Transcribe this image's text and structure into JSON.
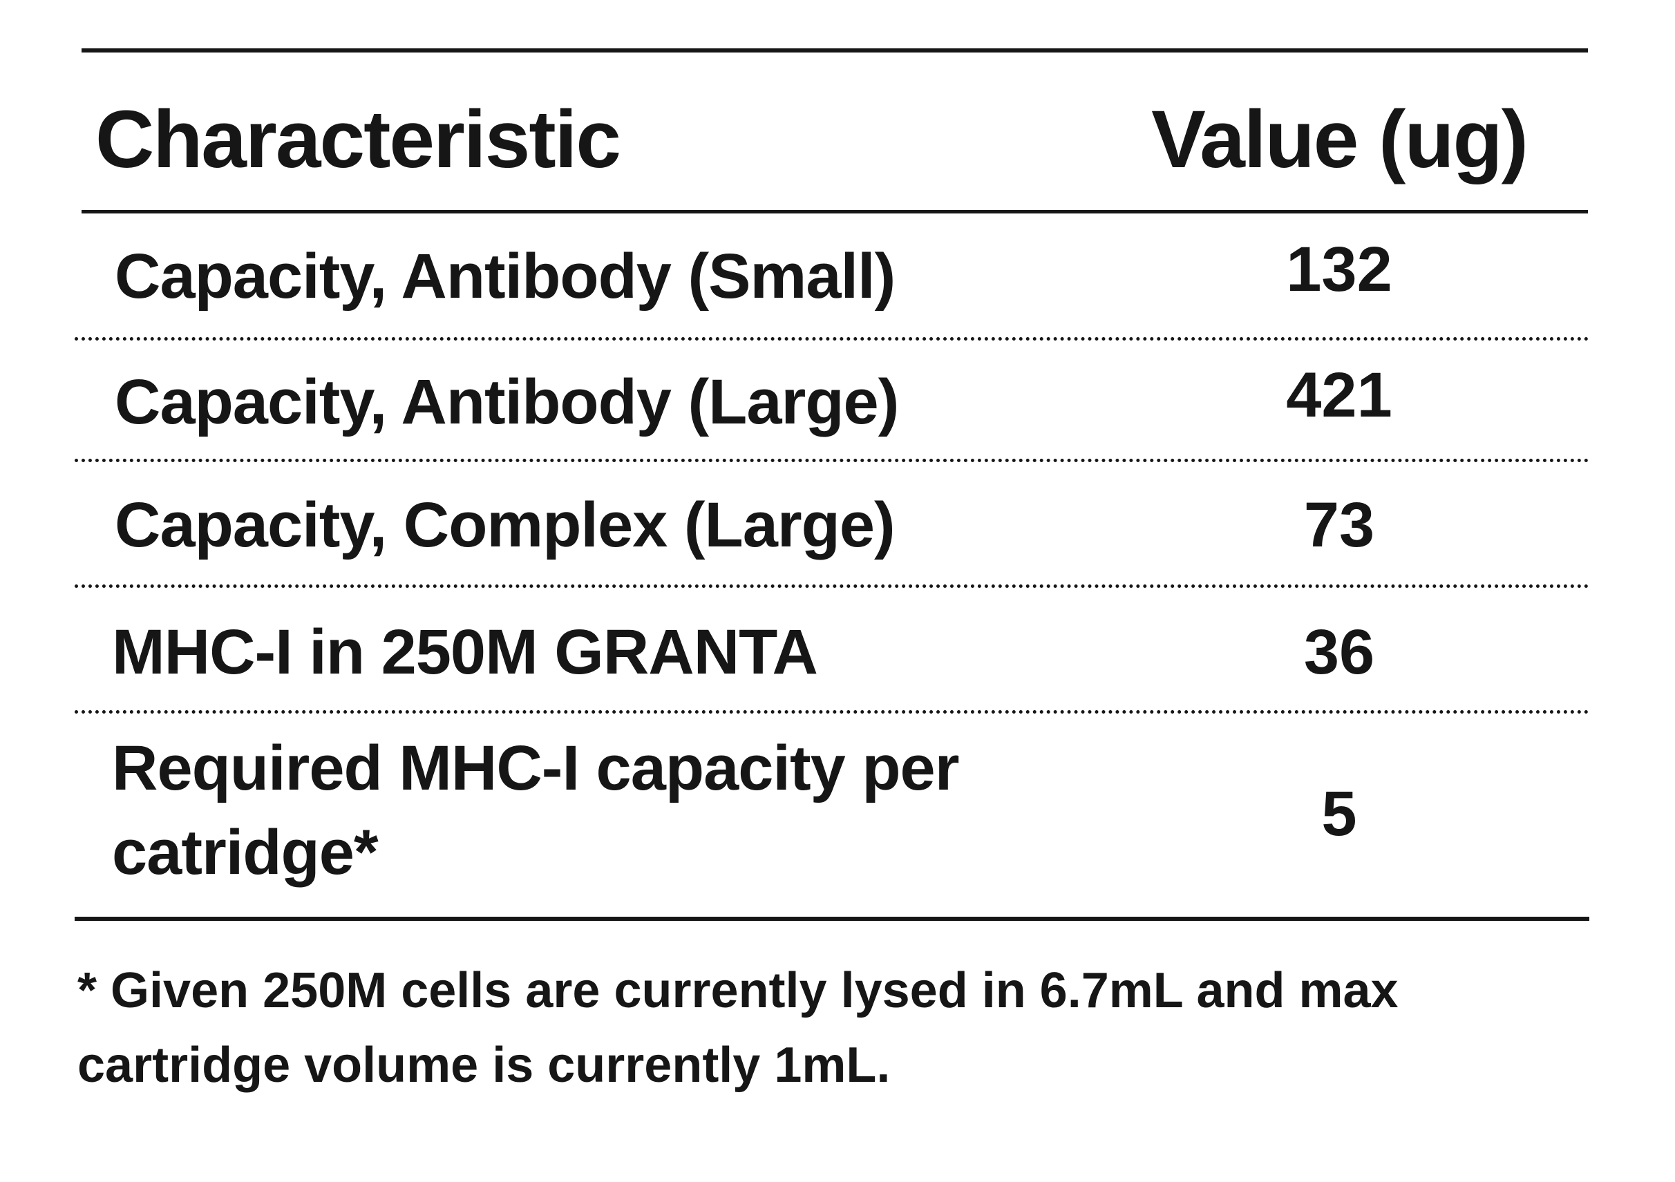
{
  "table": {
    "header": {
      "characteristic": "Characteristic",
      "value": "Value (ug)"
    },
    "rows": [
      {
        "characteristic": "Capacity, Antibody (Small)",
        "value": "132"
      },
      {
        "characteristic": "Capacity, Antibody (Large)",
        "value": "421"
      },
      {
        "characteristic": "Capacity, Complex (Large)",
        "value": "73"
      },
      {
        "characteristic": "MHC-I in 250M GRANTA",
        "value": "36"
      },
      {
        "characteristic": "Required MHC-I capacity per catridge*",
        "value": "5"
      }
    ]
  },
  "footnote": "* Given 250M cells are currently lysed in 6.7mL and max cartridge volume is currently 1mL."
}
